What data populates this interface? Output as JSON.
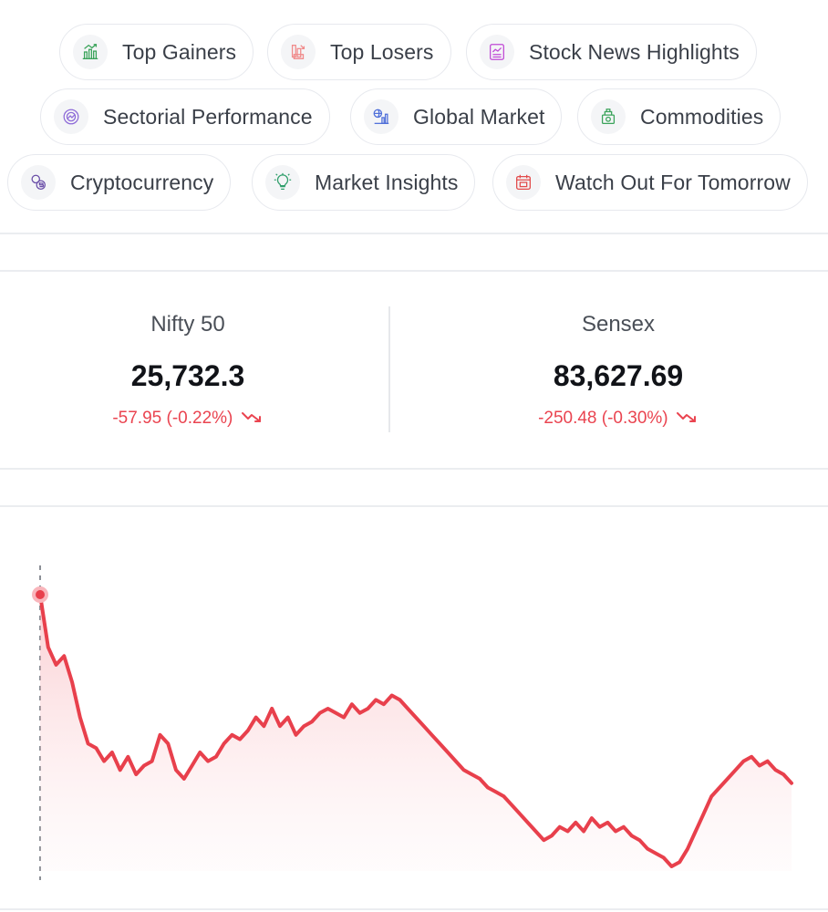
{
  "chips": [
    {
      "label": "Top Gainers",
      "icon": "top-gainers-icon",
      "color": "#3aa35a"
    },
    {
      "label": "Top Losers",
      "icon": "top-losers-icon",
      "color": "#f08a8a"
    },
    {
      "label": "Stock News Highlights",
      "icon": "stock-news-icon",
      "color": "#c04ad6"
    },
    {
      "label": "Sectorial Performance",
      "icon": "sectorial-performance-icon",
      "color": "#8e6bd8"
    },
    {
      "label": "Global Market",
      "icon": "global-market-icon",
      "color": "#4f6fd9"
    },
    {
      "label": "Commodities",
      "icon": "commodities-icon",
      "color": "#3aa35a"
    },
    {
      "label": "Cryptocurrency",
      "icon": "cryptocurrency-icon",
      "color": "#6a4ea8"
    },
    {
      "label": "Market Insights",
      "icon": "market-insights-icon",
      "color": "#2f9e6b"
    },
    {
      "label": "Watch Out For Tomorrow",
      "icon": "watch-out-icon",
      "color": "#e24b4b"
    }
  ],
  "indices": [
    {
      "name": "Nifty 50",
      "value": "25,732.3",
      "change": "-57.95 (-0.22%)",
      "trend": "down"
    },
    {
      "name": "Sensex",
      "value": "83,627.69",
      "change": "-250.48 (-0.30%)",
      "trend": "down"
    }
  ],
  "colors": {
    "negative": "#ea4450",
    "line": "#e8404c"
  },
  "chart_data": {
    "type": "line",
    "title": "",
    "xlabel": "",
    "ylabel": "",
    "grid": false,
    "series": [
      {
        "values": [
          100,
          88,
          84,
          86,
          80,
          72,
          66,
          65,
          62,
          64,
          60,
          63,
          59,
          61,
          62,
          68,
          66,
          60,
          58,
          61,
          64,
          62,
          63,
          66,
          68,
          67,
          69,
          72,
          70,
          74,
          70,
          72,
          68,
          70,
          71,
          73,
          74,
          73,
          72,
          75,
          73,
          74,
          76,
          75,
          77,
          76,
          74,
          72,
          70,
          68,
          66,
          64,
          62,
          60,
          59,
          58,
          56,
          55,
          54,
          52,
          50,
          48,
          46,
          44,
          45,
          47,
          46,
          48,
          46,
          49,
          47,
          48,
          46,
          47,
          45,
          44,
          42,
          41,
          40,
          38,
          39,
          42,
          46,
          50,
          54,
          56,
          58,
          60,
          62,
          63,
          61,
          62,
          60,
          59,
          57
        ]
      }
    ],
    "marker": "start"
  }
}
